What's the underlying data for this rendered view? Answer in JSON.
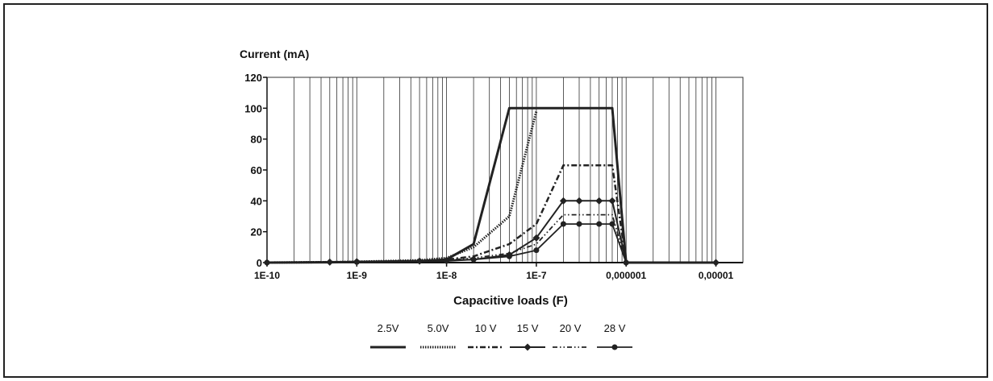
{
  "chart_data": {
    "type": "line",
    "xscale": "log",
    "xlabel": "Capacitive loads (F)",
    "ylabel": "Current (mA)",
    "xlim": [
      1e-10,
      2e-05
    ],
    "ylim": [
      0,
      120
    ],
    "y_ticks": [
      "0",
      "20",
      "40",
      "60",
      "80",
      "100",
      "120"
    ],
    "x_ticks": [
      {
        "value": 1e-10,
        "label": "1E-10"
      },
      {
        "value": 1e-09,
        "label": "1E-9"
      },
      {
        "value": 1e-08,
        "label": "1E-8"
      },
      {
        "value": 1e-07,
        "label": "1E-7"
      },
      {
        "value": 1e-06,
        "label": "0,000001"
      },
      {
        "value": 1e-05,
        "label": "0,00001"
      }
    ],
    "grid": "vertical",
    "legend_position": "bottom",
    "series": [
      {
        "name": "2.5V",
        "style": "solid",
        "x": [
          1e-10,
          5e-10,
          1e-09,
          5e-09,
          1e-08,
          2e-08,
          5e-08,
          1e-07,
          2e-07,
          3e-07,
          5e-07,
          7e-07,
          1e-06,
          1e-05
        ],
        "y": [
          0,
          0.2,
          0.4,
          1,
          2,
          12,
          100,
          100,
          100,
          100,
          100,
          100,
          0,
          0
        ]
      },
      {
        "name": "5.0V",
        "style": "dense-dot",
        "x": [
          1e-10,
          5e-10,
          1e-09,
          2e-09,
          5e-09,
          1e-08,
          2e-08,
          5e-08,
          1e-07
        ],
        "y": [
          0,
          0.3,
          0.6,
          1,
          1.5,
          3,
          10,
          30,
          98
        ]
      },
      {
        "name": "10 V",
        "style": "dash-dot",
        "x": [
          1e-10,
          1e-09,
          5e-09,
          1e-08,
          2e-08,
          5e-08,
          1e-07,
          2e-07,
          3e-07,
          5e-07,
          7e-07,
          1e-06
        ],
        "y": [
          0,
          0.5,
          1,
          2,
          4,
          12,
          25,
          63,
          63,
          63,
          63,
          0
        ]
      },
      {
        "name": "15 V",
        "style": "solid-diamond",
        "x": [
          1e-10,
          5e-10,
          1e-09,
          5e-09,
          1e-08,
          2e-08,
          5e-08,
          1e-07,
          2e-07,
          3e-07,
          5e-07,
          7e-07,
          1e-06,
          1e-05
        ],
        "y": [
          0,
          0.3,
          0.6,
          1,
          1.5,
          2,
          5,
          16,
          40,
          40,
          40,
          40,
          0,
          0
        ]
      },
      {
        "name": "20 V",
        "style": "dash-dot-dot",
        "x": [
          1e-10,
          1e-09,
          1e-08,
          2e-08,
          5e-08,
          1e-07,
          2e-07,
          3e-07,
          5e-07,
          7e-07,
          1e-06
        ],
        "y": [
          0,
          0.5,
          1.5,
          3,
          6,
          12,
          31,
          31,
          31,
          31,
          0
        ]
      },
      {
        "name": "28 V",
        "style": "solid-circle",
        "x": [
          1e-10,
          1e-09,
          1e-08,
          2e-08,
          5e-08,
          1e-07,
          2e-07,
          3e-07,
          5e-07,
          7e-07,
          1e-06
        ],
        "y": [
          0,
          0.4,
          1,
          2,
          4,
          8,
          25,
          25,
          25,
          25,
          0
        ]
      }
    ]
  }
}
